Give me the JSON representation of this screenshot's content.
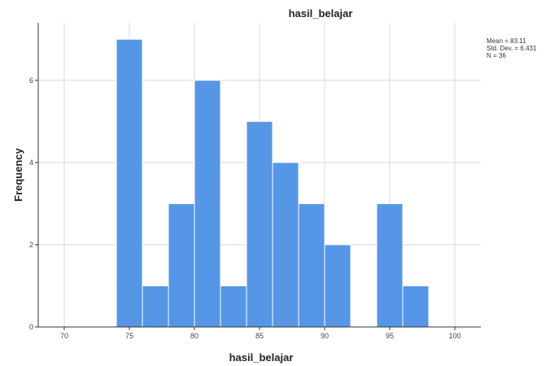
{
  "chart_data": {
    "type": "bar",
    "title": "hasil_belajar",
    "xlabel": "hasil_belajar",
    "ylabel": "Frequency",
    "xlim": [
      68,
      102
    ],
    "ylim": [
      0,
      7.4
    ],
    "x_ticks": [
      70,
      75,
      80,
      85,
      90,
      95,
      100
    ],
    "y_ticks": [
      0,
      2,
      4,
      6
    ],
    "grid": true,
    "bins": [
      {
        "start": 74,
        "end": 76,
        "count": 7
      },
      {
        "start": 76,
        "end": 78,
        "count": 1
      },
      {
        "start": 78,
        "end": 80,
        "count": 3
      },
      {
        "start": 80,
        "end": 82,
        "count": 6
      },
      {
        "start": 82,
        "end": 84,
        "count": 1
      },
      {
        "start": 84,
        "end": 86,
        "count": 5
      },
      {
        "start": 86,
        "end": 88,
        "count": 4
      },
      {
        "start": 88,
        "end": 90,
        "count": 3
      },
      {
        "start": 90,
        "end": 92,
        "count": 2
      },
      {
        "start": 94,
        "end": 96,
        "count": 3
      },
      {
        "start": 96,
        "end": 98,
        "count": 1
      }
    ],
    "stats": {
      "mean": "Mean = 83.11",
      "std": "Std. Dev. = 6.431",
      "n": "N = 36"
    },
    "colors": {
      "bar": "#5596e6",
      "grid": "#d9d9d9"
    }
  }
}
